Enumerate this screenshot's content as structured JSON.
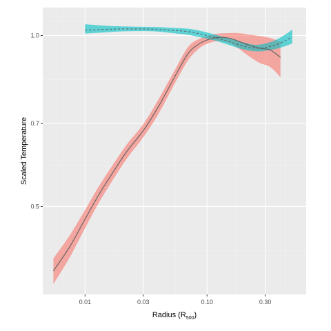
{
  "chart_data": {
    "type": "line",
    "title": "",
    "xlabel": "Radius (R",
    "xlabel_sub": "500",
    "xlabel_close": ")",
    "ylabel": "Scaled Temperature",
    "x_scale": "log",
    "y_scale": "log",
    "xlim": [
      0.0045,
      0.65
    ],
    "ylim": [
      0.35,
      1.12
    ],
    "x_ticks": [
      0.01,
      0.03,
      0.1,
      0.3
    ],
    "x_tick_labels": [
      "0.01",
      "0.03",
      "0.10",
      "0.30"
    ],
    "y_ticks": [
      0.5,
      0.7,
      1.0
    ],
    "y_tick_labels": [
      "0.5",
      "0.7",
      "1.0"
    ],
    "grid": true,
    "legend": "none",
    "colors": {
      "panel_background": "#ebebeb",
      "grid_major": "#ffffff",
      "grid_minor": "#f2f2f2",
      "series_red_band": "#f8766d",
      "series_cyan_band": "#00bfc4",
      "line": "#5f5f5f"
    },
    "series": [
      {
        "line_style": "solid",
        "band_color": "#f8766d",
        "x": [
          0.0055,
          0.0075,
          0.01,
          0.013,
          0.017,
          0.022,
          0.03,
          0.04,
          0.055,
          0.07,
          0.085,
          0.1,
          0.12,
          0.15,
          0.18,
          0.22,
          0.27,
          0.33,
          0.4
        ],
        "y": [
          0.385,
          0.425,
          0.475,
          0.525,
          0.575,
          0.625,
          0.68,
          0.75,
          0.85,
          0.93,
          0.965,
          0.982,
          0.992,
          0.99,
          0.978,
          0.962,
          0.95,
          0.943,
          0.915
        ],
        "lower": [
          0.365,
          0.407,
          0.458,
          0.508,
          0.558,
          0.607,
          0.662,
          0.728,
          0.827,
          0.905,
          0.947,
          0.967,
          0.977,
          0.972,
          0.95,
          0.92,
          0.895,
          0.88,
          0.845
        ],
        "upper": [
          0.405,
          0.445,
          0.493,
          0.543,
          0.593,
          0.643,
          0.698,
          0.772,
          0.873,
          0.955,
          0.985,
          0.997,
          1.007,
          1.01,
          1.01,
          1.004,
          0.998,
          0.99,
          0.975
        ]
      },
      {
        "line_style": "dashed",
        "band_color": "#00bfc4",
        "x": [
          0.01,
          0.015,
          0.02,
          0.03,
          0.04,
          0.05,
          0.07,
          0.09,
          0.12,
          0.15,
          0.2,
          0.25,
          0.3,
          0.35,
          0.4,
          0.45,
          0.5
        ],
        "y": [
          1.022,
          1.025,
          1.027,
          1.027,
          1.025,
          1.022,
          1.016,
          1.005,
          0.99,
          0.976,
          0.958,
          0.95,
          0.953,
          0.96,
          0.97,
          0.982,
          0.995
        ],
        "lower": [
          1.008,
          1.013,
          1.017,
          1.018,
          1.016,
          1.011,
          1.003,
          0.992,
          0.978,
          0.963,
          0.945,
          0.938,
          0.94,
          0.945,
          0.952,
          0.96,
          0.968
        ],
        "upper": [
          1.047,
          1.04,
          1.038,
          1.036,
          1.035,
          1.032,
          1.028,
          1.018,
          1.002,
          0.989,
          0.972,
          0.963,
          0.968,
          0.978,
          0.992,
          1.008,
          1.025
        ]
      }
    ]
  }
}
